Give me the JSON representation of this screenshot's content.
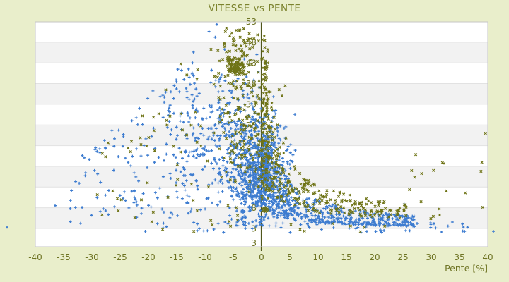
{
  "chart_data": {
    "type": "scatter",
    "title": "VITESSE vs PENTE",
    "xlabel": "Pente [%]",
    "ylabel": "",
    "xlim": [
      -40,
      40
    ],
    "ylim": [
      -1.5,
      53.2
    ],
    "x_ticks": [
      -40,
      -35,
      -30,
      -25,
      -20,
      -15,
      -10,
      -5,
      0,
      5,
      10,
      15,
      20,
      25,
      30,
      35,
      40
    ],
    "y_ticks": [
      3,
      8,
      13,
      18,
      23,
      28,
      33,
      38,
      43,
      48,
      53
    ],
    "y_axis_min_label": "3",
    "legend": "none",
    "grid": {
      "style": "horizontal-bands",
      "gray_bands_y": [
        [
          3,
          8
        ],
        [
          13,
          18
        ],
        [
          23,
          28
        ],
        [
          33,
          38
        ],
        [
          43,
          48
        ]
      ],
      "band_fill": "#f2f2f2",
      "line_color": "#e2e2e2"
    },
    "colors": {
      "background": "#e9eecb",
      "plot_background": "#ffffff",
      "plot_border": "#c6c6c6",
      "title": "#7c832e",
      "tick_label": "#6e7424",
      "axis_line": "#50561c",
      "series_blue": "#3d7cd0",
      "series_olive": "#6e7315"
    },
    "series": [
      {
        "name": "vitesse-points-bleus",
        "marker": "plus",
        "color": "#3d7cd0",
        "seed": 20240042,
        "components": [
          {
            "type": "normal",
            "n": 700,
            "mx": -0.8,
            "sx": 2.9,
            "my": 15.5,
            "sy": 6.2,
            "clip": [
              -10,
              6,
              2.6,
              33
            ]
          },
          {
            "type": "normal",
            "n": 320,
            "mx": -6.5,
            "sx": 5.5,
            "my": 26,
            "sy": 8,
            "clip": [
              -27,
              3,
              4,
              52
            ],
            "env": {
              "a": 60.75,
              "b": 1.25,
              "cap": 52
            }
          },
          {
            "type": "fan",
            "n": 160,
            "x0": -12,
            "x1": -34,
            "xpow": 1.4,
            "ymin": 4,
            "enva": 60.75,
            "envb": 1.25,
            "envcap": 46
          },
          {
            "type": "tail",
            "n": 550,
            "x0": 0.3,
            "x1": 27,
            "xpow": 1.7,
            "yfloor": 2.8,
            "base": 3.0,
            "amp": 25,
            "k": 0.33,
            "s0": 0.25,
            "s1": 0.95,
            "spow": 1.2
          },
          {
            "type": "band",
            "n": 55,
            "x0": -22,
            "x1": 38,
            "xpow": 1,
            "ymin": 2.0,
            "ymax": 4.6,
            "ypow": 1
          },
          {
            "type": "points",
            "pts": [
              [
                -45,
                3.3
              ],
              [
                41,
                2.3
              ],
              [
                35.9,
                2.3
              ],
              [
                30.8,
                3.1
              ],
              [
                27.5,
                4.2
              ],
              [
                25.2,
                8.9
              ],
              [
                -7.9,
                52.3
              ],
              [
                -9.3,
                50.6
              ],
              [
                -8.2,
                49.2
              ],
              [
                -36.5,
                8.5
              ],
              [
                -33.8,
                4.6
              ]
            ]
          }
        ]
      },
      {
        "name": "vitesse-points-olive",
        "marker": "x-cross",
        "color": "#6e7315",
        "seed": 9091337,
        "components": [
          {
            "type": "normal",
            "n": 65,
            "mx": -4.5,
            "sx": 0.8,
            "my": 42,
            "sy": 1.2,
            "clip": [
              -7,
              -2,
              39.5,
              44.5
            ]
          },
          {
            "type": "normal",
            "n": 80,
            "mx": -4,
            "sx": 2.0,
            "my": 43.5,
            "sy": 3.0,
            "clip": [
              -10,
              1,
              36,
              50.5
            ]
          },
          {
            "type": "band",
            "n": 18,
            "x0": -6.5,
            "x1": 0,
            "xpow": 1,
            "ymin": 46.5,
            "ymax": 51.5,
            "ypow": 1
          },
          {
            "type": "band",
            "n": 100,
            "x0": 0.0,
            "x1": 1.3,
            "xpow": 1,
            "ymin": 7,
            "ymax": 50,
            "ypow": 1.3
          },
          {
            "type": "normal",
            "n": 170,
            "mx": -1.5,
            "sx": 3.2,
            "my": 26,
            "sy": 7.5,
            "clip": [
              -13,
              5,
              10,
              44
            ]
          },
          {
            "type": "tail",
            "n": 250,
            "x0": 0.8,
            "x1": 26,
            "xpow": 1.5,
            "yfloor": 4,
            "base": 4.5,
            "amp": 31,
            "k": 0.3,
            "s0": 0.35,
            "s1": 0.85,
            "spow": 1
          },
          {
            "type": "fan",
            "n": 75,
            "x0": -4,
            "x1": -30,
            "xpow": 1.6,
            "ymin": 4.5,
            "enva": 60.75,
            "envb": 1.25,
            "envcap": 44
          },
          {
            "type": "band",
            "n": 16,
            "x0": 26,
            "x1": 40,
            "xpow": 1,
            "ymin": 4.5,
            "ymax": 25,
            "ypow": 1.6
          },
          {
            "type": "band",
            "n": 12,
            "x0": -18,
            "x1": 22,
            "xpow": 1,
            "ymin": 2.2,
            "ymax": 4.2,
            "ypow": 1
          },
          {
            "type": "points",
            "pts": [
              [
                38.8,
                16.8
              ],
              [
                30.4,
                17.0
              ],
              [
                39.6,
                26.0
              ],
              [
                -25.5,
                10.2
              ],
              [
                -28.2,
                6.3
              ]
            ]
          }
        ]
      }
    ]
  }
}
